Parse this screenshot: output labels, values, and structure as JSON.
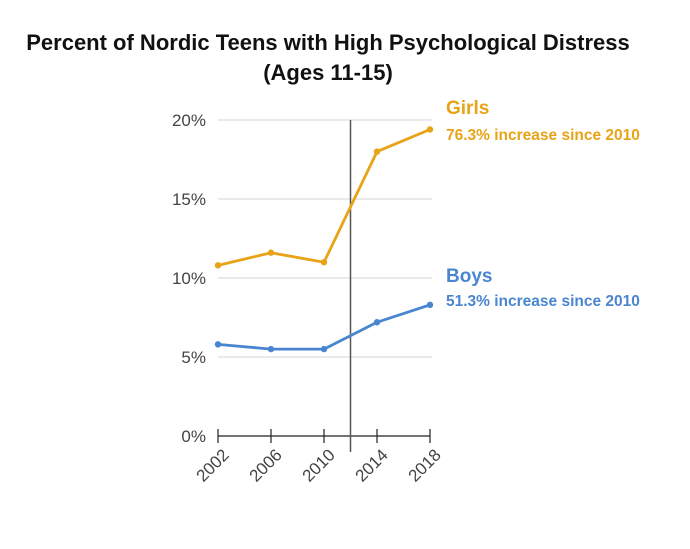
{
  "chart_data": {
    "type": "line",
    "title": "Percent of Nordic Teens with High Psychological Distress",
    "subtitle": "(Ages 11-15)",
    "x": [
      2002,
      2006,
      2010,
      2014,
      2018
    ],
    "x_tick_labels": [
      "2002",
      "2006",
      "2010",
      "2014",
      "2018"
    ],
    "y_tick_labels": [
      "0%",
      "5%",
      "10%",
      "15%",
      "20%"
    ],
    "ylim": [
      0,
      20
    ],
    "grid": true,
    "reference_line_x": 2012,
    "series": [
      {
        "name": "Girls",
        "annotation": "76.3% increase since 2010",
        "color": "#E8A317",
        "values": [
          10.8,
          11.6,
          11.0,
          18.0,
          19.4
        ]
      },
      {
        "name": "Boys",
        "annotation": "51.3% increase since 2010",
        "color": "#4A86CF",
        "values": [
          5.8,
          5.5,
          5.5,
          7.2,
          8.3
        ]
      }
    ]
  }
}
